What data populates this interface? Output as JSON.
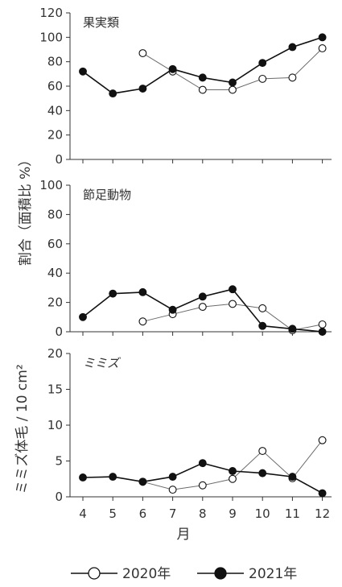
{
  "colors": {
    "line": "#6b6b6b",
    "line_2021": "#111111",
    "axis": "#333333"
  },
  "chart_data": [
    {
      "type": "line",
      "panel_label": "果実類",
      "ylim": [
        0,
        120
      ],
      "yticks": [
        "0",
        "20",
        "40",
        "60",
        "80",
        "100",
        "120"
      ],
      "series": [
        {
          "name": "2020年",
          "marker": "open",
          "x": [
            6,
            7,
            8,
            9,
            10,
            11,
            12
          ],
          "values": [
            87,
            72,
            57,
            57,
            66,
            67,
            91
          ]
        },
        {
          "name": "2021年",
          "marker": "filled",
          "x": [
            4,
            5,
            6,
            7,
            8,
            9,
            10,
            11,
            12
          ],
          "values": [
            72,
            54,
            58,
            74,
            67,
            63,
            79,
            92,
            100
          ]
        }
      ]
    },
    {
      "type": "line",
      "panel_label": "節足動物",
      "ylim": [
        0,
        100
      ],
      "yticks": [
        "0",
        "20",
        "40",
        "60",
        "80",
        "100"
      ],
      "series": [
        {
          "name": "2020年",
          "marker": "open",
          "x": [
            6,
            7,
            8,
            9,
            10,
            11,
            12
          ],
          "values": [
            7,
            12,
            17,
            19,
            16,
            1,
            5
          ]
        },
        {
          "name": "2021年",
          "marker": "filled",
          "x": [
            4,
            5,
            6,
            7,
            8,
            9,
            10,
            11,
            12
          ],
          "values": [
            10,
            26,
            27,
            15,
            24,
            29,
            4,
            2,
            0
          ]
        }
      ]
    },
    {
      "type": "line",
      "panel_label": "ミミズ",
      "ylim": [
        0,
        20
      ],
      "yticks": [
        "0",
        "5",
        "10",
        "15",
        "20"
      ],
      "series": [
        {
          "name": "2020年",
          "marker": "open",
          "x": [
            6,
            7,
            8,
            9,
            10,
            11,
            12
          ],
          "values": [
            2.1,
            1.0,
            1.6,
            2.5,
            6.4,
            2.6,
            7.9
          ]
        },
        {
          "name": "2021年",
          "marker": "filled",
          "x": [
            4,
            5,
            6,
            7,
            8,
            9,
            10,
            11,
            12
          ],
          "values": [
            2.7,
            2.8,
            2.1,
            2.8,
            4.7,
            3.6,
            3.3,
            2.8,
            0.5
          ]
        }
      ]
    }
  ],
  "x_categories": [
    "4",
    "5",
    "6",
    "7",
    "8",
    "9",
    "10",
    "11",
    "12"
  ],
  "xlabel": "月",
  "ylabel_top": "割合（面積比 %）",
  "ylabel_bottom": "ミミズ体毛 / 10 cm²",
  "legend": [
    {
      "label": "2020年",
      "marker": "open"
    },
    {
      "label": "2021年",
      "marker": "filled"
    }
  ],
  "legend_position": "bottom-center"
}
